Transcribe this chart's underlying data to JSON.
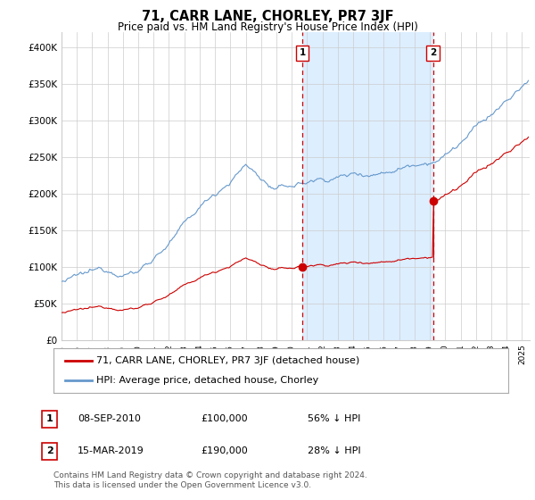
{
  "title": "71, CARR LANE, CHORLEY, PR7 3JF",
  "subtitle": "Price paid vs. HM Land Registry's House Price Index (HPI)",
  "ylabel_ticks": [
    "£0",
    "£50K",
    "£100K",
    "£150K",
    "£200K",
    "£250K",
    "£300K",
    "£350K",
    "£400K"
  ],
  "ytick_values": [
    0,
    50000,
    100000,
    150000,
    200000,
    250000,
    300000,
    350000,
    400000
  ],
  "ylim": [
    0,
    420000
  ],
  "xlim_start": 1995.0,
  "xlim_end": 2025.5,
  "marker1_x": 2010.69,
  "marker1_y": 100000,
  "marker2_x": 2019.21,
  "marker2_y": 190000,
  "legend_line1": "71, CARR LANE, CHORLEY, PR7 3JF (detached house)",
  "legend_line2": "HPI: Average price, detached house, Chorley",
  "annot1_num": "1",
  "annot1_date": "08-SEP-2010",
  "annot1_price": "£100,000",
  "annot1_hpi": "56% ↓ HPI",
  "annot2_num": "2",
  "annot2_date": "15-MAR-2019",
  "annot2_price": "£190,000",
  "annot2_hpi": "28% ↓ HPI",
  "footer": "Contains HM Land Registry data © Crown copyright and database right 2024.\nThis data is licensed under the Open Government Licence v3.0.",
  "red_color": "#cc0000",
  "blue_color": "#6699cc",
  "shade_color": "#ddeeff",
  "vline_color": "#cc0000",
  "grid_color": "#cccccc",
  "bg_color": "#ffffff"
}
